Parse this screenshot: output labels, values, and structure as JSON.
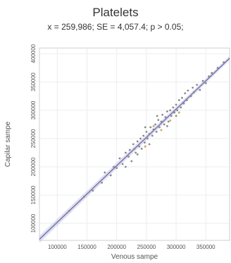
{
  "chart_data": {
    "type": "scatter",
    "title": "Platelets",
    "subtitle": "x = 259,986; SE = 4,057.4; p > 0.05;",
    "xlabel": "Venous sampe",
    "ylabel": "Capilar sampe",
    "xlim": [
      70000,
      390000
    ],
    "ylim": [
      70000,
      410000
    ],
    "xticks": [
      100000,
      150000,
      200000,
      250000,
      300000,
      350000
    ],
    "yticks": [
      100000,
      150000,
      200000,
      250000,
      300000,
      350000,
      400000
    ],
    "xtick_labels": [
      "100000",
      "150000",
      "200000",
      "250000",
      "300000",
      "350000"
    ],
    "ytick_labels": [
      "100000",
      "150000",
      "200000",
      "250000",
      "300000",
      "350000",
      "400000"
    ],
    "grid": true,
    "fit_line": {
      "x": [
        70000,
        390000
      ],
      "y": [
        72000,
        392000
      ],
      "color": "#6f6fb0"
    },
    "points_color": "#8a8a8a",
    "points_highlight_color": "#c9a36a",
    "series": [
      {
        "values": [
          [
            120000,
            122000
          ],
          [
            145000,
            147000
          ],
          [
            160000,
            158000
          ],
          [
            175000,
            172000
          ],
          [
            180000,
            190000
          ],
          [
            190000,
            185000
          ],
          [
            195000,
            200000
          ],
          [
            200000,
            198000
          ],
          [
            205000,
            215000
          ],
          [
            210000,
            205000
          ],
          [
            215000,
            225000
          ],
          [
            220000,
            218000
          ],
          [
            222000,
            230000
          ],
          [
            225000,
            210000
          ],
          [
            228000,
            240000
          ],
          [
            230000,
            232000
          ],
          [
            232000,
            225000
          ],
          [
            235000,
            245000
          ],
          [
            238000,
            236000
          ],
          [
            240000,
            250000
          ],
          [
            242000,
            232000
          ],
          [
            245000,
            255000
          ],
          [
            247000,
            243000
          ],
          [
            250000,
            262000
          ],
          [
            252000,
            250000
          ],
          [
            255000,
            258000
          ],
          [
            257000,
            270000
          ],
          [
            260000,
            255000
          ],
          [
            262000,
            266000
          ],
          [
            265000,
            275000
          ],
          [
            267000,
            262000
          ],
          [
            270000,
            283000
          ],
          [
            272000,
            270000
          ],
          [
            275000,
            280000
          ],
          [
            277000,
            292000
          ],
          [
            280000,
            275000
          ],
          [
            282000,
            288000
          ],
          [
            285000,
            298000
          ],
          [
            287000,
            280000
          ],
          [
            290000,
            300000
          ],
          [
            292000,
            290000
          ],
          [
            295000,
            305000
          ],
          [
            297000,
            296000
          ],
          [
            300000,
            310000
          ],
          [
            302000,
            300000
          ],
          [
            305000,
            318000
          ],
          [
            308000,
            305000
          ],
          [
            310000,
            322000
          ],
          [
            313000,
            312000
          ],
          [
            315000,
            330000
          ],
          [
            318000,
            318000
          ],
          [
            320000,
            335000
          ],
          [
            325000,
            325000
          ],
          [
            328000,
            340000
          ],
          [
            330000,
            332000
          ],
          [
            335000,
            345000
          ],
          [
            340000,
            336000
          ],
          [
            345000,
            352000
          ],
          [
            350000,
            348000
          ],
          [
            355000,
            360000
          ],
          [
            360000,
            366000
          ],
          [
            370000,
            375000
          ],
          [
            380000,
            385000
          ],
          [
            215000,
            200000
          ],
          [
            235000,
            222000
          ],
          [
            248000,
            270000
          ],
          [
            268000,
            290000
          ],
          [
            285000,
            272000
          ],
          [
            300000,
            290000
          ],
          [
            255000,
            240000
          ]
        ],
        "highlighted": [
          [
            262000,
            272000
          ],
          [
            275000,
            265000
          ],
          [
            290000,
            282000
          ],
          [
            305000,
            296000
          ],
          [
            248000,
            236000
          ]
        ]
      }
    ]
  }
}
